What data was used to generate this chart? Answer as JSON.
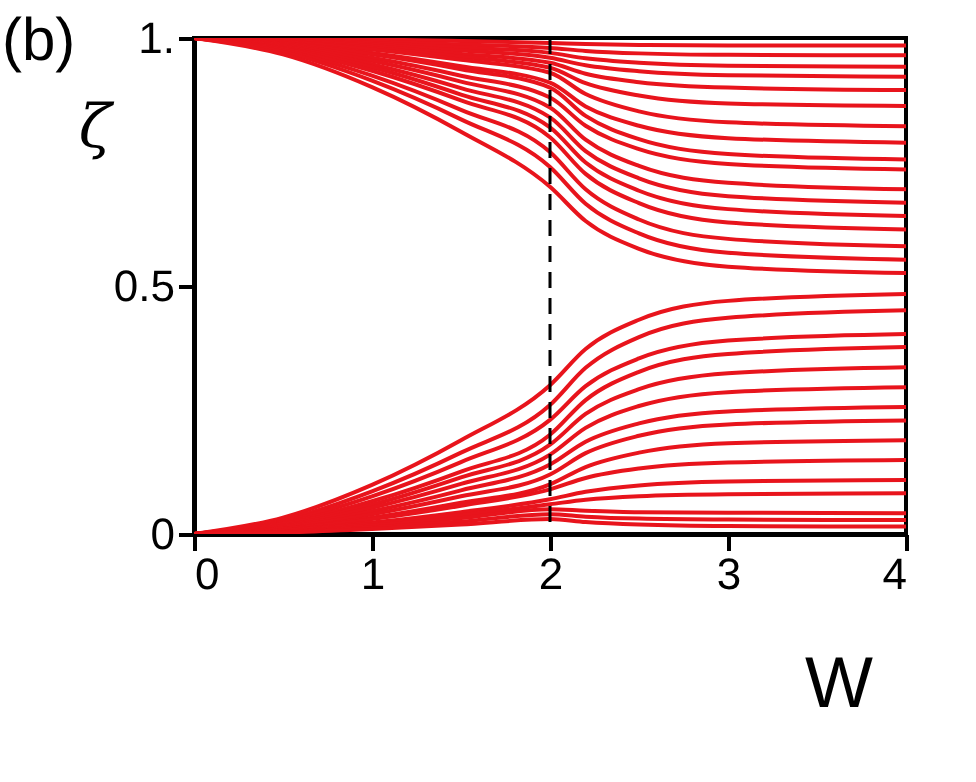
{
  "chart_data": {
    "type": "line",
    "title": "(b)",
    "xlabel": "W",
    "ylabel": "ζ",
    "x": [
      0,
      0.5,
      1,
      1.5,
      2,
      2.2,
      2.5,
      3,
      4
    ],
    "xlim": [
      0,
      4
    ],
    "xticks": [
      0,
      1,
      2,
      3,
      4
    ],
    "ylim": [
      0,
      1
    ],
    "yticks": [
      0,
      0.5,
      {
        "value": 1,
        "label": "1."
      }
    ],
    "grid": false,
    "marker": "none",
    "line_style": "solid",
    "ref_lines": [
      {
        "axis": "x",
        "value": 2,
        "color": "#000000",
        "line_style": "dashed"
      }
    ],
    "series": [
      {
        "color": "#e8141c",
        "values": [
          1,
          0.999,
          0.997,
          0.994,
          0.99,
          0.988,
          0.986,
          0.985,
          0.985
        ]
      },
      {
        "color": "#e8141c",
        "values": [
          1,
          0.998,
          0.993,
          0.987,
          0.98,
          0.974,
          0.969,
          0.966,
          0.965
        ]
      },
      {
        "color": "#e8141c",
        "values": [
          1,
          0.997,
          0.99,
          0.981,
          0.97,
          0.959,
          0.95,
          0.944,
          0.942
        ]
      },
      {
        "color": "#e8141c",
        "values": [
          1,
          0.996,
          0.987,
          0.975,
          0.96,
          0.945,
          0.933,
          0.925,
          0.922
        ]
      },
      {
        "color": "#e8141c",
        "values": [
          1,
          0.995,
          0.984,
          0.968,
          0.95,
          0.928,
          0.911,
          0.9,
          0.895
        ]
      },
      {
        "color": "#e8141c",
        "values": [
          1,
          0.993,
          0.98,
          0.962,
          0.94,
          0.909,
          0.884,
          0.868,
          0.863
        ]
      },
      {
        "color": "#e8141c",
        "values": [
          1,
          0.992,
          0.977,
          0.956,
          0.93,
          0.887,
          0.852,
          0.83,
          0.822
        ]
      },
      {
        "color": "#e8141c",
        "values": [
          1,
          0.99,
          0.97,
          0.943,
          0.91,
          0.862,
          0.823,
          0.798,
          0.789
        ]
      },
      {
        "color": "#e8141c",
        "values": [
          1,
          0.989,
          0.967,
          0.937,
          0.9,
          0.843,
          0.796,
          0.766,
          0.755
        ]
      },
      {
        "color": "#e8141c",
        "values": [
          1,
          0.987,
          0.96,
          0.924,
          0.88,
          0.823,
          0.776,
          0.746,
          0.735
        ]
      },
      {
        "color": "#e8141c",
        "values": [
          1,
          0.985,
          0.954,
          0.912,
          0.86,
          0.795,
          0.742,
          0.708,
          0.695
        ]
      },
      {
        "color": "#e8141c",
        "values": [
          1,
          0.983,
          0.947,
          0.899,
          0.84,
          0.772,
          0.717,
          0.681,
          0.668
        ]
      },
      {
        "color": "#e8141c",
        "values": [
          1,
          0.98,
          0.941,
          0.886,
          0.82,
          0.749,
          0.692,
          0.655,
          0.641
        ]
      },
      {
        "color": "#e8141c",
        "values": [
          1,
          0.978,
          0.934,
          0.874,
          0.8,
          0.726,
          0.667,
          0.628,
          0.614
        ]
      },
      {
        "color": "#e8141c",
        "values": [
          1,
          0.975,
          0.924,
          0.855,
          0.77,
          0.695,
          0.634,
          0.595,
          0.58
        ]
      },
      {
        "color": "#e8141c",
        "values": [
          1,
          0.972,
          0.914,
          0.836,
          0.74,
          0.666,
          0.606,
          0.567,
          0.553
        ]
      },
      {
        "color": "#e8141c",
        "values": [
          1,
          0.967,
          0.901,
          0.811,
          0.7,
          0.631,
          0.575,
          0.539,
          0.526
        ]
      },
      {
        "color": "#e8141c",
        "values": [
          0,
          0.033,
          0.099,
          0.189,
          0.3,
          0.373,
          0.432,
          0.47,
          0.484
        ]
      },
      {
        "color": "#e8141c",
        "values": [
          0,
          0.028,
          0.086,
          0.164,
          0.26,
          0.335,
          0.397,
          0.436,
          0.451
        ]
      },
      {
        "color": "#e8141c",
        "values": [
          0,
          0.025,
          0.076,
          0.145,
          0.23,
          0.298,
          0.354,
          0.39,
          0.403
        ]
      },
      {
        "color": "#e8141c",
        "values": [
          0,
          0.022,
          0.066,
          0.126,
          0.2,
          0.27,
          0.327,
          0.363,
          0.377
        ]
      },
      {
        "color": "#e8141c",
        "values": [
          0,
          0.02,
          0.059,
          0.114,
          0.18,
          0.242,
          0.292,
          0.324,
          0.336
        ]
      },
      {
        "color": "#e8141c",
        "values": [
          0,
          0.017,
          0.053,
          0.101,
          0.16,
          0.214,
          0.258,
          0.286,
          0.296
        ]
      },
      {
        "color": "#e8141c",
        "values": [
          0,
          0.015,
          0.046,
          0.088,
          0.14,
          0.186,
          0.223,
          0.247,
          0.256
        ]
      },
      {
        "color": "#e8141c",
        "values": [
          0,
          0.013,
          0.04,
          0.076,
          0.12,
          0.163,
          0.198,
          0.221,
          0.229
        ]
      },
      {
        "color": "#e8141c",
        "values": [
          0,
          0.011,
          0.033,
          0.063,
          0.1,
          0.135,
          0.164,
          0.183,
          0.189
        ]
      },
      {
        "color": "#e8141c",
        "values": [
          0,
          0.01,
          0.03,
          0.057,
          0.09,
          0.113,
          0.132,
          0.144,
          0.149
        ]
      },
      {
        "color": "#e8141c",
        "values": [
          0,
          0.008,
          0.023,
          0.044,
          0.07,
          0.085,
          0.098,
          0.106,
          0.109
        ]
      },
      {
        "color": "#e8141c",
        "values": [
          0,
          0.007,
          0.02,
          0.038,
          0.06,
          0.069,
          0.076,
          0.08,
          0.082
        ]
      },
      {
        "color": "#e8141c",
        "values": [
          0,
          0.005,
          0.017,
          0.032,
          0.05,
          0.047,
          0.044,
          0.043,
          0.042
        ]
      },
      {
        "color": "#e8141c",
        "values": [
          0,
          0.004,
          0.013,
          0.025,
          0.04,
          0.035,
          0.031,
          0.029,
          0.028
        ]
      },
      {
        "color": "#e8141c",
        "values": [
          0,
          0.003,
          0.01,
          0.019,
          0.03,
          0.024,
          0.019,
          0.016,
          0.015
        ]
      }
    ]
  }
}
